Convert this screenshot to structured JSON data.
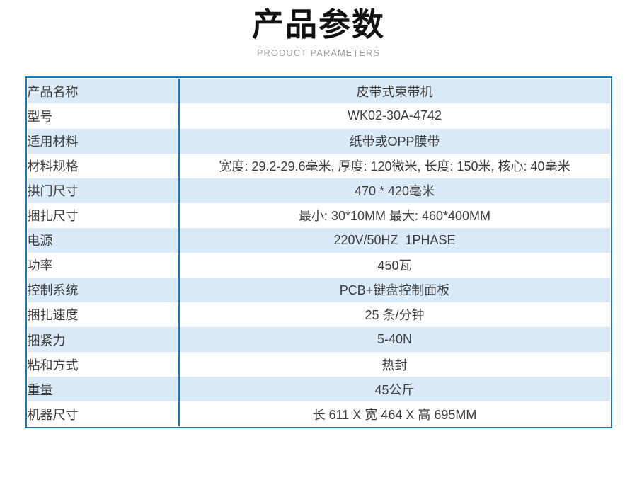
{
  "header": {
    "title": "产品参数",
    "subtitle": "PRODUCT PARAMETERS"
  },
  "table": {
    "rows": [
      {
        "label": "产品名称",
        "value": "皮带式束带机"
      },
      {
        "label": "型号",
        "value": "WK02-30A-4742"
      },
      {
        "label": "适用材料",
        "value": "纸带或OPP膜带"
      },
      {
        "label": "材料规格",
        "value": "宽度: 29.2-29.6毫米, 厚度: 120微米, 长度: 150米, 核心: 40毫米"
      },
      {
        "label": "拱门尺寸",
        "value": "470 * 420毫米"
      },
      {
        "label": "捆扎尺寸",
        "value": "最小: 30*10MM 最大: 460*400MM"
      },
      {
        "label": "电源",
        "value": "220V/50HZ  1PHASE"
      },
      {
        "label": "功率",
        "value": "450瓦"
      },
      {
        "label": "控制系统",
        "value": "PCB+键盘控制面板"
      },
      {
        "label": "捆扎速度",
        "value": "25 条/分钟"
      },
      {
        "label": "捆紧力",
        "value": "5-40N"
      },
      {
        "label": "粘和方式",
        "value": "热封"
      },
      {
        "label": "重量",
        "value": "45公斤"
      },
      {
        "label": "机器尺寸",
        "value": "长 611 X 宽 464 X 高 695MM"
      }
    ]
  },
  "colors": {
    "border_blue": "#1578c2",
    "row_stripe": "#daeaf8",
    "title_text": "#111111",
    "subtitle_text": "#9b9b9b",
    "body_text": "#3c3c3c"
  }
}
